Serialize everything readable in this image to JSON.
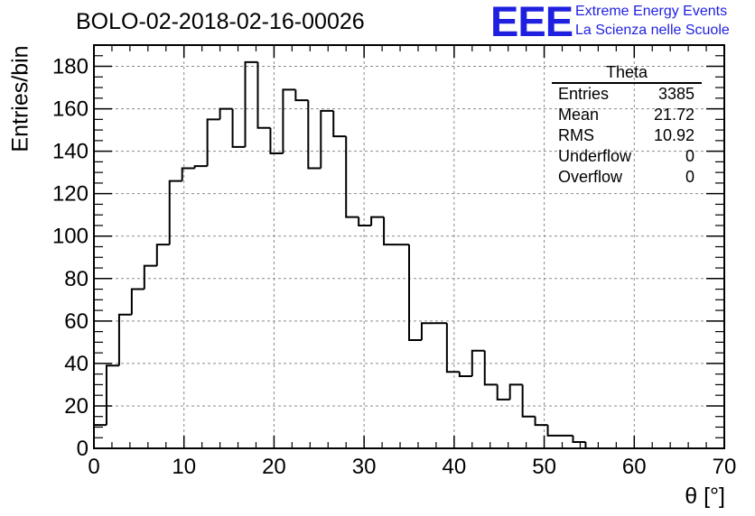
{
  "header": {
    "title": "BOLO-02-2018-02-16-00026",
    "logo_text": "EEE",
    "logo_line1": "Extreme Energy Events",
    "logo_line2": "La Scienza nelle Scuole"
  },
  "stats_box": {
    "title": "Theta",
    "rows": [
      {
        "label": "Entries",
        "value": "3385"
      },
      {
        "label": "Mean",
        "value": "21.72"
      },
      {
        "label": "RMS",
        "value": "10.92"
      },
      {
        "label": "Underflow",
        "value": "0"
      },
      {
        "label": "Overflow",
        "value": "0"
      }
    ]
  },
  "colors": {
    "line": "#000000",
    "grid": "#8a8a8a",
    "logo": "#1f1fe0"
  },
  "chart_data": {
    "type": "histogram",
    "title": "BOLO-02-2018-02-16-00026",
    "xlabel": "θ [°]",
    "ylabel": "Entries/bin",
    "xlim": [
      0,
      70
    ],
    "ylim": [
      0,
      190
    ],
    "bin_width": 1.4,
    "x_ticks": [
      0,
      10,
      20,
      30,
      40,
      50,
      60,
      70
    ],
    "y_ticks": [
      0,
      20,
      40,
      60,
      80,
      100,
      120,
      140,
      160,
      180
    ],
    "grid": true,
    "values": [
      11,
      39,
      63,
      75,
      86,
      96,
      126,
      132,
      133,
      155,
      160,
      142,
      182,
      151,
      139,
      169,
      164,
      132,
      159,
      147,
      109,
      105,
      109,
      96,
      96,
      51,
      59,
      59,
      36,
      34,
      46,
      30,
      23,
      30,
      15,
      11,
      6,
      6,
      3,
      0,
      0,
      0,
      0,
      0,
      0,
      0,
      0,
      0,
      0,
      0
    ]
  }
}
